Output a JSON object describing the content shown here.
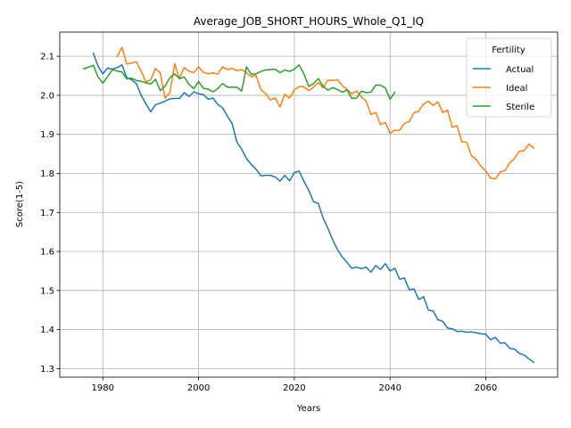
{
  "chart_data": {
    "type": "line",
    "title": "Average_JOB_SHORT_HOURS_Whole_Q1_IQ",
    "xlabel": "Years",
    "ylabel": "Score(1-5)",
    "xlim": [
      1971,
      2075
    ],
    "ylim": [
      1.278,
      2.162
    ],
    "xticks": [
      1980,
      2000,
      2020,
      2040,
      2060
    ],
    "yticks": [
      1.3,
      1.4,
      1.5,
      1.6,
      1.7,
      1.8,
      1.9,
      2.0,
      2.1
    ],
    "xtick_labels": [
      "1980",
      "2000",
      "2020",
      "2040",
      "2060"
    ],
    "ytick_labels": [
      "1.3",
      "1.4",
      "1.5",
      "1.6",
      "1.7",
      "1.8",
      "1.9",
      "2.0",
      "2.1"
    ],
    "grid": true,
    "legend": {
      "title": "Fertility",
      "position": "top-right"
    },
    "series": [
      {
        "name": "Actual",
        "color": "#1f77b4",
        "x": [
          1978,
          1979,
          1980,
          1981,
          1982,
          1983,
          1984,
          1985,
          1986,
          1987,
          1988,
          1989,
          1990,
          1991,
          1992,
          1993,
          1994,
          1995,
          1996,
          1997,
          1998,
          1999,
          2000,
          2001,
          2002,
          2003,
          2004,
          2005,
          2006,
          2007,
          2008,
          2009,
          2010,
          2011,
          2012,
          2013,
          2014,
          2015,
          2016,
          2017,
          2018,
          2019,
          2020,
          2021,
          2022,
          2023,
          2024,
          2025,
          2026,
          2027,
          2028,
          2029,
          2030,
          2031,
          2032,
          2033,
          2034,
          2035,
          2036,
          2037,
          2038,
          2039,
          2040,
          2041,
          2042,
          2043,
          2044,
          2045,
          2046,
          2047,
          2048,
          2049,
          2050,
          2051,
          2052,
          2053,
          2054,
          2055,
          2056,
          2057,
          2058,
          2059,
          2060,
          2061,
          2062,
          2063,
          2064,
          2065,
          2066,
          2067,
          2068,
          2069,
          2070
        ],
        "y": [
          2.108,
          2.075,
          2.055,
          2.07,
          2.067,
          2.071,
          2.078,
          2.045,
          2.04,
          2.03,
          2.0,
          1.978,
          1.958,
          1.976,
          1.98,
          1.985,
          1.991,
          1.992,
          1.992,
          2.007,
          1.997,
          2.009,
          2.004,
          2.002,
          1.99,
          1.993,
          1.977,
          1.968,
          1.947,
          1.928,
          1.88,
          1.862,
          1.838,
          1.823,
          1.811,
          1.794,
          1.795,
          1.795,
          1.791,
          1.78,
          1.795,
          1.781,
          1.802,
          1.806,
          1.78,
          1.757,
          1.728,
          1.723,
          1.686,
          1.66,
          1.63,
          1.605,
          1.586,
          1.572,
          1.557,
          1.56,
          1.556,
          1.56,
          1.547,
          1.564,
          1.554,
          1.569,
          1.55,
          1.557,
          1.529,
          1.532,
          1.502,
          1.504,
          1.477,
          1.484,
          1.45,
          1.447,
          1.425,
          1.421,
          1.404,
          1.402,
          1.395,
          1.396,
          1.393,
          1.394,
          1.392,
          1.389,
          1.388,
          1.374,
          1.38,
          1.365,
          1.366,
          1.352,
          1.35,
          1.339,
          1.335,
          1.325,
          1.316
        ]
      },
      {
        "name": "Ideal",
        "color": "#ff7f0e",
        "x": [
          1983,
          1984,
          1985,
          1986,
          1987,
          1988,
          1989,
          1990,
          1991,
          1992,
          1993,
          1994,
          1995,
          1996,
          1997,
          1998,
          1999,
          2000,
          2001,
          2002,
          2003,
          2004,
          2005,
          2006,
          2007,
          2008,
          2009,
          2010,
          2011,
          2012,
          2013,
          2014,
          2015,
          2016,
          2017,
          2018,
          2019,
          2020,
          2021,
          2022,
          2023,
          2024,
          2025,
          2026,
          2027,
          2028,
          2029,
          2030,
          2031,
          2032,
          2033,
          2034,
          2035,
          2036,
          2037,
          2038,
          2039,
          2040,
          2041,
          2042,
          2043,
          2044,
          2045,
          2046,
          2047,
          2048,
          2049,
          2050,
          2051,
          2052,
          2053,
          2054,
          2055,
          2056,
          2057,
          2058,
          2059,
          2060,
          2061,
          2062,
          2063,
          2064,
          2065,
          2066,
          2067,
          2068,
          2069,
          2070
        ],
        "y": [
          2.1,
          2.123,
          2.08,
          2.083,
          2.086,
          2.062,
          2.034,
          2.04,
          2.069,
          2.057,
          1.993,
          2.007,
          2.081,
          2.043,
          2.071,
          2.062,
          2.058,
          2.073,
          2.059,
          2.055,
          2.058,
          2.054,
          2.073,
          2.066,
          2.069,
          2.063,
          2.066,
          2.058,
          2.048,
          2.051,
          2.015,
          2.004,
          1.988,
          1.993,
          1.97,
          2.003,
          1.993,
          2.014,
          2.022,
          2.022,
          2.012,
          2.021,
          2.033,
          2.019,
          2.039,
          2.038,
          2.04,
          2.025,
          2.015,
          2.004,
          2.011,
          1.996,
          1.985,
          1.951,
          1.956,
          1.925,
          1.931,
          1.903,
          1.911,
          1.91,
          1.928,
          1.933,
          1.955,
          1.96,
          1.978,
          1.985,
          1.974,
          1.983,
          1.956,
          1.962,
          1.918,
          1.922,
          1.881,
          1.88,
          1.845,
          1.836,
          1.818,
          1.806,
          1.788,
          1.786,
          1.804,
          1.807,
          1.827,
          1.838,
          1.857,
          1.858,
          1.875,
          1.865
        ]
      },
      {
        "name": "Sterile",
        "color": "#2ca02c",
        "x": [
          1976,
          1977,
          1978,
          1979,
          1980,
          1981,
          1982,
          1983,
          1984,
          1985,
          1986,
          1987,
          1988,
          1989,
          1990,
          1991,
          1992,
          1993,
          1994,
          1995,
          1996,
          1997,
          1998,
          1999,
          2000,
          2001,
          2002,
          2003,
          2004,
          2005,
          2006,
          2007,
          2008,
          2009,
          2010,
          2011,
          2012,
          2013,
          2014,
          2015,
          2016,
          2017,
          2018,
          2019,
          2020,
          2021,
          2022,
          2023,
          2024,
          2025,
          2026,
          2027,
          2028,
          2029,
          2030,
          2031,
          2032,
          2033,
          2034,
          2035,
          2036,
          2037,
          2038,
          2039,
          2040,
          2041
        ],
        "y": [
          2.068,
          2.072,
          2.077,
          2.047,
          2.031,
          2.048,
          2.066,
          2.062,
          2.06,
          2.042,
          2.044,
          2.038,
          2.036,
          2.032,
          2.029,
          2.041,
          2.012,
          2.024,
          2.045,
          2.055,
          2.043,
          2.047,
          2.028,
          2.017,
          2.035,
          2.018,
          2.016,
          2.009,
          2.017,
          2.03,
          2.021,
          2.021,
          2.021,
          2.011,
          2.073,
          2.054,
          2.055,
          2.061,
          2.065,
          2.066,
          2.067,
          2.058,
          2.065,
          2.061,
          2.067,
          2.078,
          2.055,
          2.023,
          2.03,
          2.043,
          2.024,
          2.013,
          2.02,
          2.015,
          2.008,
          2.014,
          1.992,
          1.993,
          2.011,
          2.007,
          2.008,
          2.026,
          2.026,
          2.019,
          1.99,
          2.008
        ]
      }
    ]
  }
}
